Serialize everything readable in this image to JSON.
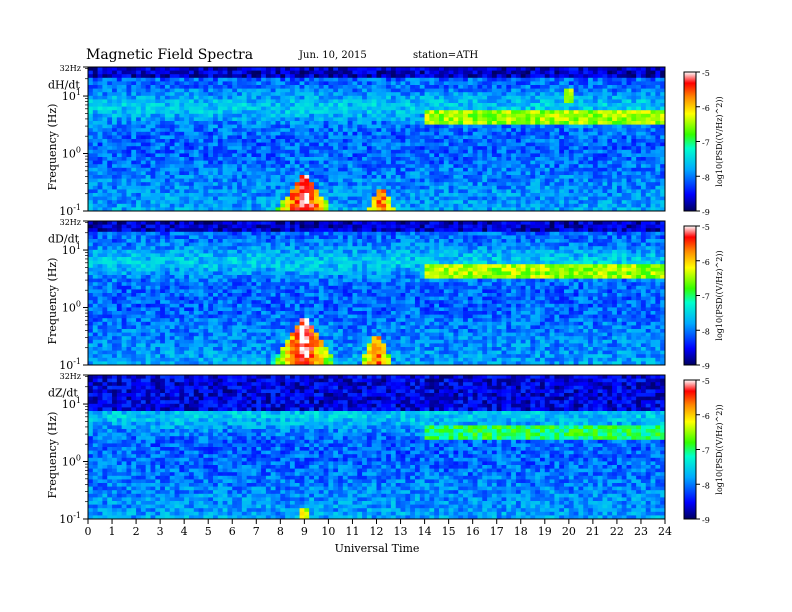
{
  "header": {
    "title": "Magnetic  Field  Spectra",
    "date": "Jun. 10, 2015",
    "station": "station=ATH"
  },
  "chart_data": [
    {
      "type": "heatmap",
      "component": "dH/dt",
      "xlabel": "Universal Time",
      "ylabel": "Frequency (Hz)",
      "xlim": [
        0,
        24
      ],
      "ylim": [
        0.1,
        32
      ],
      "yscale": "log",
      "x_ticks": [
        "0",
        "1",
        "2",
        "3",
        "4",
        "5",
        "6",
        "7",
        "8",
        "9",
        "10",
        "11",
        "12",
        "13",
        "14",
        "15",
        "16",
        "17",
        "18",
        "19",
        "20",
        "21",
        "22",
        "23",
        "24"
      ],
      "y_ticks": [
        "32Hz",
        "10^1",
        "10^0",
        "10^-1"
      ],
      "colorbar": {
        "label": "log10(PSD((V/Hz)^2))",
        "ticks": [
          "-5",
          "-6",
          "-7",
          "-8",
          "-9"
        ],
        "range": [
          -9,
          -5
        ]
      },
      "features": [
        {
          "ut_start": 7.0,
          "ut_end": 10.0,
          "peak_ut": 9.0,
          "freq_hz_max": 0.5,
          "log10_psd": -5
        },
        {
          "ut_start": 11.2,
          "ut_end": 13.5,
          "peak_ut": 12.2,
          "freq_hz_max": 0.3,
          "log10_psd": -5.5
        },
        {
          "ut_start": 14.0,
          "ut_end": 24.0,
          "freq_hz": 4.5,
          "log10_psd": -6.5
        },
        {
          "ut_start": 19.8,
          "ut_end": 20.2,
          "freq_hz": 10,
          "log10_psd": -6.5
        }
      ]
    },
    {
      "type": "heatmap",
      "component": "dD/dt",
      "xlabel": "Universal Time",
      "ylabel": "Frequency (Hz)",
      "xlim": [
        0,
        24
      ],
      "ylim": [
        0.1,
        32
      ],
      "yscale": "log",
      "x_ticks": [
        "0",
        "1",
        "2",
        "3",
        "4",
        "5",
        "6",
        "7",
        "8",
        "9",
        "10",
        "11",
        "12",
        "13",
        "14",
        "15",
        "16",
        "17",
        "18",
        "19",
        "20",
        "21",
        "22",
        "23",
        "24"
      ],
      "y_ticks": [
        "32Hz",
        "10^1",
        "10^0",
        "10^-1"
      ],
      "colorbar": {
        "label": "log10(PSD((V/Hz)^2))",
        "ticks": [
          "-5",
          "-6",
          "-7",
          "-8",
          "-9"
        ],
        "range": [
          -9,
          -5
        ]
      },
      "features": [
        {
          "ut_start": 7.5,
          "ut_end": 10.2,
          "peak_ut": 9.0,
          "freq_hz_max": 0.8,
          "log10_psd": -5
        },
        {
          "ut_start": 11.0,
          "ut_end": 13.2,
          "peak_ut": 12.0,
          "freq_hz_max": 0.4,
          "log10_psd": -5.5
        },
        {
          "ut_start": 14.0,
          "ut_end": 24.0,
          "freq_hz": 4.5,
          "log10_psd": -6.5
        }
      ]
    },
    {
      "type": "heatmap",
      "component": "dZ/dt",
      "xlabel": "Universal Time",
      "ylabel": "Frequency (Hz)",
      "xlim": [
        0,
        24
      ],
      "ylim": [
        0.1,
        32
      ],
      "yscale": "log",
      "x_ticks": [
        "0",
        "1",
        "2",
        "3",
        "4",
        "5",
        "6",
        "7",
        "8",
        "9",
        "10",
        "11",
        "12",
        "13",
        "14",
        "15",
        "16",
        "17",
        "18",
        "19",
        "20",
        "21",
        "22",
        "23",
        "24"
      ],
      "y_ticks": [
        "32Hz",
        "10^1",
        "10^0",
        "10^-1"
      ],
      "colorbar": {
        "label": "log10(PSD((V/Hz)^2))",
        "ticks": [
          "-5",
          "-6",
          "-7",
          "-8",
          "-9"
        ],
        "range": [
          -9,
          -5
        ]
      },
      "features": [
        {
          "ut_start": 8.5,
          "ut_end": 9.8,
          "peak_ut": 9.0,
          "freq_hz_max": 0.2,
          "log10_psd": -6
        },
        {
          "ut_start": 14.0,
          "ut_end": 24.0,
          "freq_hz": 3,
          "log10_psd": -7
        }
      ]
    }
  ]
}
